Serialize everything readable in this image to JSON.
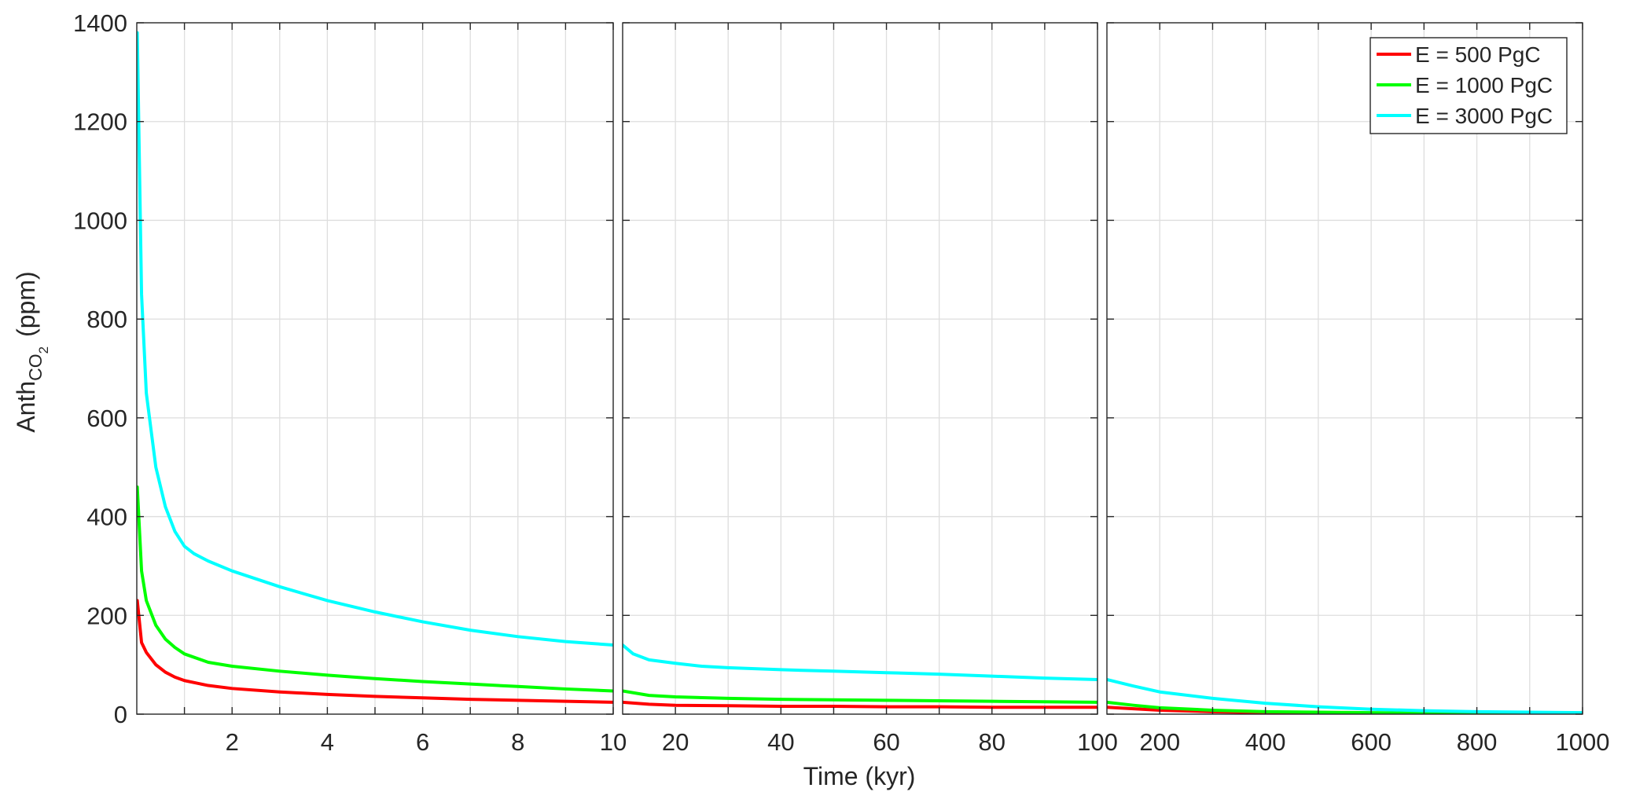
{
  "chart_data": {
    "type": "line",
    "title": "",
    "xlabel": "Time (kyr)",
    "ylabel": {
      "main": "Anth",
      "sub": "CO",
      "subsub": "2",
      "unit": "(ppm)"
    },
    "ylim": [
      0,
      1400
    ],
    "yticks": [
      "0",
      "200",
      "400",
      "600",
      "800",
      "1000",
      "1200",
      "1400"
    ],
    "ytick_values": [
      0,
      200,
      400,
      600,
      800,
      1000,
      1200,
      1400
    ],
    "grid": true,
    "legend_position": "top-right",
    "panels": [
      {
        "xlim": [
          0,
          10
        ],
        "xticks": [
          "2",
          "4",
          "6",
          "8",
          "10"
        ],
        "xtick_values": [
          2,
          4,
          6,
          8,
          10
        ],
        "xgrid": [
          1,
          2,
          3,
          4,
          5,
          6,
          7,
          8,
          9
        ]
      },
      {
        "xlim": [
          10,
          100
        ],
        "xticks": [
          "20",
          "40",
          "60",
          "80",
          "100"
        ],
        "xtick_values": [
          20,
          40,
          60,
          80,
          100
        ],
        "xgrid": [
          20,
          30,
          40,
          50,
          60,
          70,
          80,
          90
        ]
      },
      {
        "xlim": [
          100,
          1000
        ],
        "xticks": [
          "200",
          "400",
          "600",
          "800",
          "1000"
        ],
        "xtick_values": [
          200,
          400,
          600,
          800,
          1000
        ],
        "xgrid": [
          200,
          300,
          400,
          500,
          600,
          700,
          800,
          900
        ]
      }
    ],
    "series": [
      {
        "name": "E = 500 PgC",
        "color": "#ff0000",
        "x": [
          0.01,
          0.1,
          0.2,
          0.4,
          0.6,
          0.8,
          1.0,
          1.5,
          2,
          3,
          4,
          5,
          6,
          7,
          8,
          9,
          10,
          15,
          20,
          30,
          40,
          50,
          60,
          70,
          80,
          90,
          100,
          150,
          200,
          300,
          400,
          500,
          600,
          700,
          800,
          900,
          1000
        ],
        "y": [
          230,
          145,
          125,
          100,
          85,
          75,
          68,
          58,
          52,
          45,
          40,
          36,
          33,
          30,
          28,
          26,
          24,
          20,
          18,
          17,
          16,
          16,
          15,
          15,
          14,
          14,
          14,
          11,
          8,
          5,
          3,
          2,
          1.5,
          1,
          0.8,
          0.6,
          0.5
        ]
      },
      {
        "name": "E = 1000 PgC",
        "color": "#00ff00",
        "x": [
          0.01,
          0.1,
          0.2,
          0.4,
          0.6,
          0.8,
          1.0,
          1.5,
          2,
          3,
          4,
          5,
          6,
          7,
          8,
          9,
          10,
          15,
          20,
          30,
          40,
          50,
          60,
          70,
          80,
          90,
          100,
          150,
          200,
          300,
          400,
          500,
          600,
          700,
          800,
          900,
          1000
        ],
        "y": [
          460,
          290,
          230,
          180,
          152,
          135,
          122,
          105,
          97,
          87,
          79,
          72,
          66,
          61,
          56,
          51,
          47,
          38,
          35,
          32,
          30,
          29,
          28,
          27,
          26,
          25,
          24,
          18,
          13,
          8,
          5,
          4,
          3,
          2,
          1.5,
          1.2,
          1
        ]
      },
      {
        "name": "E = 3000 PgC",
        "color": "#00ffff",
        "x": [
          0.01,
          0.1,
          0.2,
          0.4,
          0.6,
          0.8,
          1.0,
          1.2,
          1.5,
          2,
          3,
          4,
          5,
          6,
          7,
          8,
          9,
          10,
          12,
          15,
          20,
          25,
          30,
          40,
          50,
          60,
          70,
          80,
          90,
          100,
          150,
          200,
          300,
          400,
          500,
          600,
          700,
          800,
          900,
          1000
        ],
        "y": [
          1380,
          850,
          650,
          500,
          420,
          370,
          340,
          325,
          310,
          290,
          258,
          230,
          207,
          187,
          170,
          157,
          147,
          140,
          122,
          110,
          103,
          97,
          94,
          90,
          87,
          84,
          81,
          77,
          73,
          70,
          57,
          45,
          32,
          22,
          15,
          10,
          7,
          5,
          4,
          3
        ]
      }
    ]
  }
}
